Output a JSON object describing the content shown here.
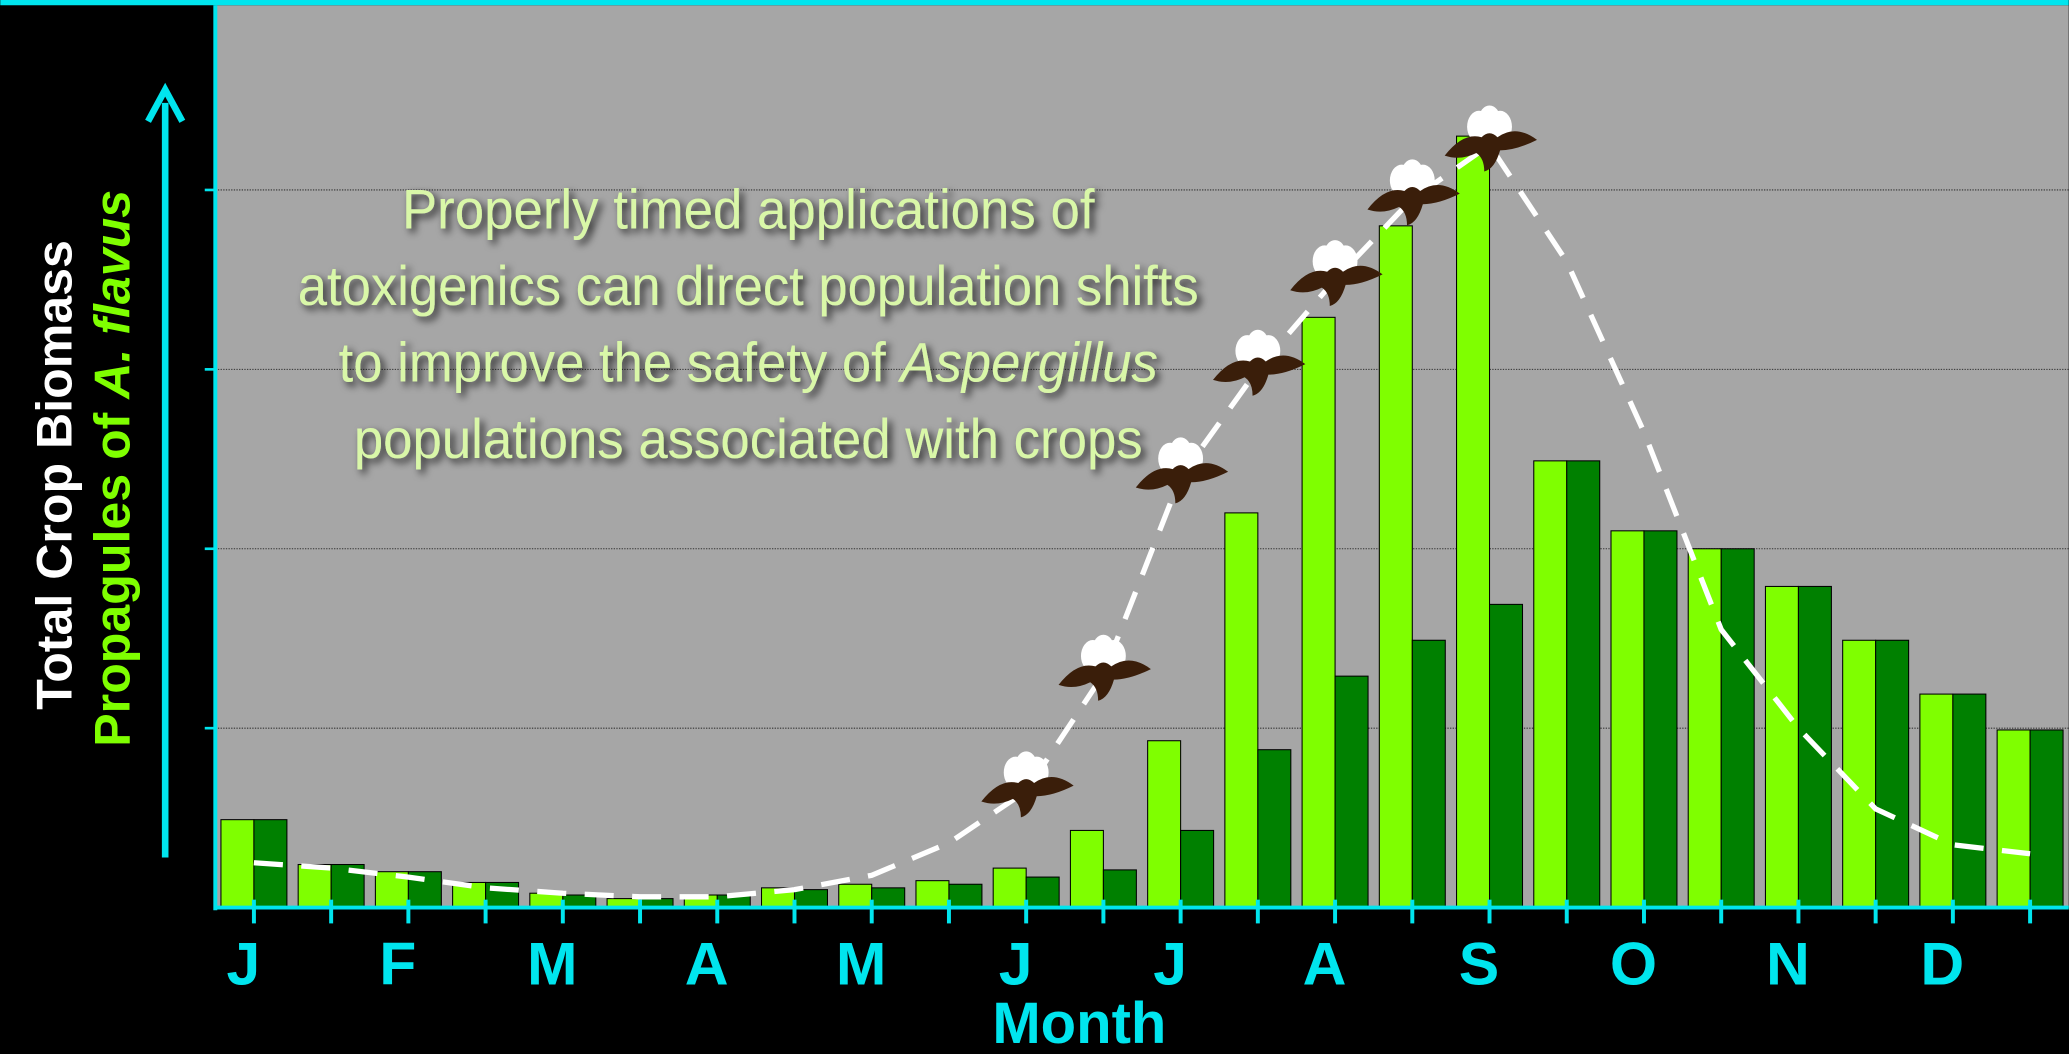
{
  "chart_data": {
    "type": "bar",
    "annotation_lines": [
      "Properly timed applications of",
      "atoxigenics can direct population shifts",
      "to improve the safety of ",
      "Aspergillus",
      "populations associated with crops"
    ],
    "y_label_1": "Total Crop Biomass",
    "y_label_2": "Propagules of ",
    "y_label_2_italic": "A. flavus",
    "x_label": "Month",
    "categories": [
      "J",
      null,
      "F",
      null,
      "M",
      null,
      "A",
      null,
      "M",
      null,
      "J",
      null,
      "J",
      null,
      "A",
      null,
      "S",
      null,
      "O",
      null,
      "N",
      null,
      "D",
      null
    ],
    "series": [
      {
        "color": "#7fff00",
        "values": [
          0.49,
          0.24,
          0.2,
          0.14,
          0.08,
          0.05,
          0.07,
          0.11,
          0.13,
          0.15,
          0.22,
          0.43,
          0.93,
          2.2,
          3.29,
          3.8,
          4.3,
          2.49,
          2.1,
          2.0,
          1.79,
          1.49,
          1.19,
          0.99
        ]
      },
      {
        "color": "#008000",
        "values": [
          0.49,
          0.24,
          0.2,
          0.14,
          0.07,
          0.05,
          0.07,
          0.1,
          0.11,
          0.13,
          0.17,
          0.21,
          0.43,
          0.88,
          1.29,
          1.49,
          1.69,
          2.49,
          2.1,
          2.0,
          1.79,
          1.49,
          1.19,
          0.99
        ]
      },
      {
        "type": "line",
        "color": "#ffffff",
        "values": [
          0.25,
          0.22,
          0.17,
          0.11,
          0.08,
          0.06,
          0.06,
          0.1,
          0.18,
          0.36,
          0.65,
          1.3,
          2.4,
          3.0,
          3.5,
          3.95,
          4.25,
          3.6,
          2.65,
          1.55,
          1.0,
          0.55,
          0.35,
          0.3
        ]
      }
    ],
    "ylim": [
      0,
      5
    ],
    "yticks": [
      1,
      2,
      3,
      4
    ],
    "grid": true
  }
}
